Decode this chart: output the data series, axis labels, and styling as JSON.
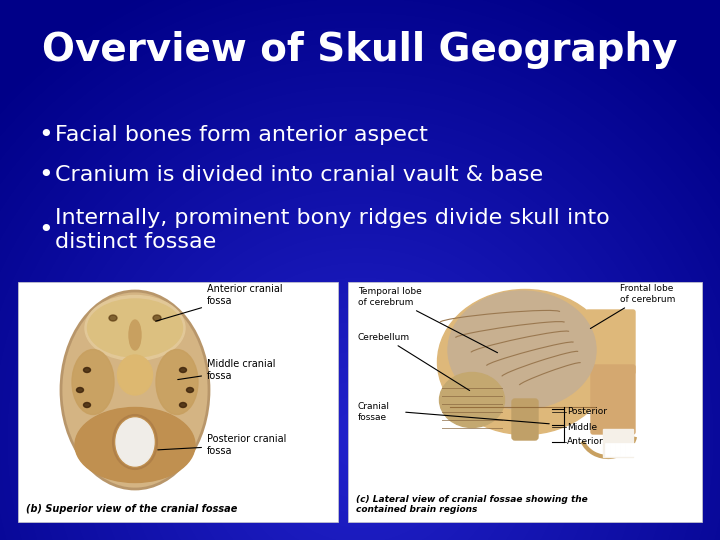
{
  "title": "Overview of Skull Geography",
  "title_fontsize": 28,
  "title_color": "white",
  "bg_color_top": "#1a1aaa",
  "bg_color_bottom": "#0000aa",
  "bullet_points": [
    "Facial bones form anterior aspect",
    "Cranium is divided into cranial vault & base",
    "Internally, prominent bony ridges divide skull into\ndistinct fossae"
  ],
  "bullet_color": "white",
  "bullet_fontsize": 16,
  "image_box1_label": "(b) Superior view of the cranial fossae",
  "image_box2_label": "(c) Lateral view of cranial fossae showing the\ncontained brain regions"
}
